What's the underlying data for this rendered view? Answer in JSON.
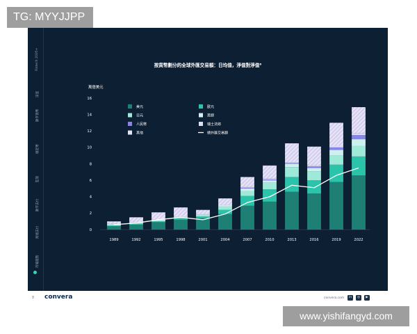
{
  "watermark_top": "TG: MYYJJPP",
  "watermark_bottom": "www.yishifangyd.com",
  "sidebar": [
    "Fintech 2035+",
    "深度",
    "數字貨幣",
    "穩定幣",
    "監管",
    "數字支付",
    "跨境支付",
    "市場趨勢"
  ],
  "footer": {
    "page": "8",
    "brand": "convera",
    "site": "convera.com",
    "social": [
      "in",
      "◎",
      "▶"
    ]
  },
  "colors": {
    "background": "#0d1f33",
    "usd": "#1e7f75",
    "eur": "#2cc3ab",
    "jpy": "#9ee9d8",
    "gbp": "#cdeff0",
    "cny": "#8b84e8",
    "chf": "#dcdff3",
    "other": "#e6e2f5",
    "hatch": "#b9b3e6",
    "line": "#ffffff",
    "text": "#ffffff"
  },
  "chart_data": {
    "type": "bar",
    "stacked": true,
    "title": "按貨幣劃分的全球外匯交易額：日均值，淨值對淨值⁶",
    "ylabel": "萬億美元",
    "xlabel": "",
    "ylim": [
      0,
      16
    ],
    "yticks": [
      0,
      2,
      4,
      6,
      8,
      10,
      12,
      14,
      16
    ],
    "grid": false,
    "legend_position": "top-left",
    "categories": [
      "1989",
      "1992",
      "1995",
      "1998",
      "2001",
      "2004",
      "2007",
      "2010",
      "2013",
      "2016",
      "2019",
      "2022"
    ],
    "series": [
      {
        "name": "美元",
        "values": [
          0.4,
          0.6,
          0.9,
          1.2,
          1.4,
          1.9,
          2.9,
          3.4,
          4.6,
          4.4,
          5.8,
          6.6
        ]
      },
      {
        "name": "歐元",
        "values": [
          0.1,
          0.1,
          0.1,
          0.2,
          0.2,
          0.5,
          1.2,
          1.5,
          1.8,
          1.6,
          2.1,
          2.3
        ]
      },
      {
        "name": "日元",
        "values": [
          0.1,
          0.1,
          0.1,
          0.1,
          0.2,
          0.4,
          0.6,
          0.8,
          1.2,
          1.1,
          1.1,
          1.3
        ]
      },
      {
        "name": "英鎊",
        "values": [
          0.1,
          0.1,
          0.1,
          0.1,
          0.1,
          0.2,
          0.3,
          0.3,
          0.4,
          0.4,
          0.7,
          0.8
        ]
      },
      {
        "name": "人民幣",
        "values": [
          0.0,
          0.0,
          0.0,
          0.0,
          0.0,
          0.0,
          0.1,
          0.1,
          0.1,
          0.2,
          0.3,
          0.5
        ]
      },
      {
        "name": "瑞士法郎",
        "values": [
          0.0,
          0.0,
          0.0,
          0.0,
          0.0,
          0.0,
          0.1,
          0.1,
          0.1,
          0.1,
          0.2,
          0.2
        ]
      },
      {
        "name": "其他",
        "values": [
          0.3,
          0.6,
          0.9,
          1.1,
          0.5,
          0.8,
          1.2,
          1.6,
          2.3,
          2.3,
          2.8,
          3.2
        ]
      }
    ],
    "line_series": {
      "name": "總外匯交易額",
      "values": [
        0.6,
        0.8,
        1.2,
        1.5,
        1.2,
        1.9,
        3.3,
        4.0,
        5.4,
        5.1,
        6.6,
        7.5
      ]
    }
  }
}
